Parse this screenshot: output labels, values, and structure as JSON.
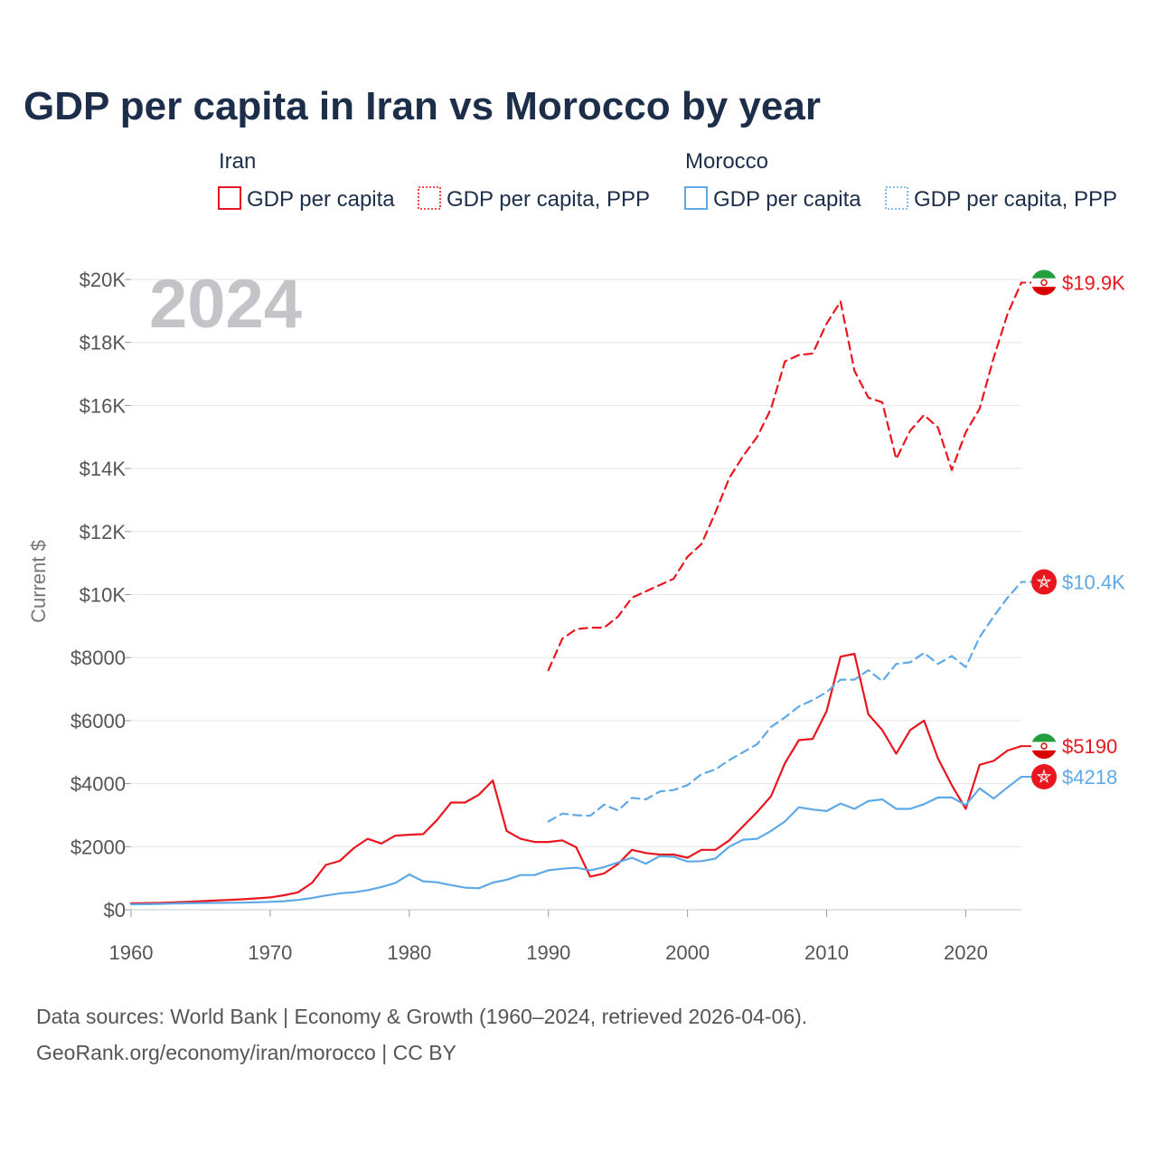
{
  "chart_data": {
    "type": "line",
    "title": "GDP per capita in Iran vs Morocco by year",
    "ylabel": "Current $",
    "xlabel": "",
    "xlim": [
      1960,
      2024
    ],
    "ylim": [
      0,
      20000
    ],
    "x_ticks": [
      1960,
      1970,
      1980,
      1990,
      2000,
      2010,
      2020
    ],
    "x_tick_labels": [
      "1960",
      "1970",
      "1980",
      "1990",
      "2000",
      "2010",
      "2020"
    ],
    "y_ticks": [
      0,
      2000,
      4000,
      6000,
      8000,
      10000,
      12000,
      14000,
      16000,
      18000,
      20000
    ],
    "y_tick_labels": [
      "$0",
      "$2000",
      "$4000",
      "$6000",
      "$8000",
      "$10K",
      "$12K",
      "$14K",
      "$16K",
      "$18K",
      "$20K"
    ],
    "grid": true,
    "year_watermark": "2024",
    "legend": {
      "groups": [
        {
          "title": "Iran",
          "color": "#e8161f",
          "items": [
            "GDP per capita",
            "GDP per capita, PPP"
          ]
        },
        {
          "title": "Morocco",
          "color": "#5ea9e6",
          "items": [
            "GDP per capita",
            "GDP per capita, PPP"
          ]
        }
      ]
    },
    "series": [
      {
        "name": "Iran GDP per capita",
        "country": "Iran",
        "color": "#e8161f",
        "dash": false,
        "end_label": "$5190",
        "flag": "iran",
        "x": [
          1960,
          1961,
          1962,
          1963,
          1964,
          1965,
          1966,
          1967,
          1968,
          1969,
          1970,
          1971,
          1972,
          1973,
          1974,
          1975,
          1976,
          1977,
          1978,
          1979,
          1980,
          1981,
          1982,
          1983,
          1984,
          1985,
          1986,
          1987,
          1988,
          1989,
          1990,
          1991,
          1992,
          1993,
          1994,
          1995,
          1996,
          1997,
          1998,
          1999,
          2000,
          2001,
          2002,
          2003,
          2004,
          2005,
          2006,
          2007,
          2008,
          2009,
          2010,
          2011,
          2012,
          2013,
          2014,
          2015,
          2016,
          2017,
          2018,
          2019,
          2020,
          2021,
          2022,
          2023,
          2024
        ],
        "values": [
          200,
          210,
          215,
          230,
          250,
          270,
          290,
          310,
          330,
          360,
          390,
          460,
          550,
          850,
          1420,
          1550,
          1950,
          2250,
          2100,
          2350,
          2380,
          2400,
          2850,
          3400,
          3400,
          3650,
          4100,
          2500,
          2250,
          2150,
          2150,
          2200,
          1980,
          1050,
          1150,
          1450,
          1900,
          1800,
          1750,
          1750,
          1650,
          1900,
          1900,
          2200,
          2650,
          3100,
          3600,
          4650,
          5380,
          5420,
          6300,
          8030,
          8120,
          6200,
          5700,
          4950,
          5700,
          6000,
          4800,
          3950,
          3200,
          4600,
          4720,
          5050,
          5190
        ]
      },
      {
        "name": "Iran GDP per capita, PPP",
        "country": "Iran",
        "color": "#e8161f",
        "dash": true,
        "end_label": "$19.9K",
        "flag": "iran",
        "x": [
          1990,
          1991,
          1992,
          1993,
          1994,
          1995,
          1996,
          1997,
          1998,
          1999,
          2000,
          2001,
          2002,
          2003,
          2004,
          2005,
          2006,
          2007,
          2008,
          2009,
          2010,
          2011,
          2012,
          2013,
          2014,
          2015,
          2016,
          2017,
          2018,
          2019,
          2020,
          2021,
          2022,
          2023,
          2024
        ],
        "values": [
          7600,
          8600,
          8900,
          8950,
          8950,
          9300,
          9900,
          10100,
          10300,
          10500,
          11200,
          11600,
          12600,
          13700,
          14400,
          15000,
          15900,
          17400,
          17600,
          17650,
          18600,
          19300,
          17100,
          16250,
          16100,
          14300,
          15200,
          15700,
          15300,
          13950,
          15150,
          15900,
          17500,
          18900,
          19900
        ]
      },
      {
        "name": "Morocco GDP per capita",
        "country": "Morocco",
        "color": "#5ea9e6",
        "dash": false,
        "end_label": "$4218",
        "flag": "morocco",
        "x": [
          1960,
          1961,
          1962,
          1963,
          1964,
          1965,
          1966,
          1967,
          1968,
          1969,
          1970,
          1971,
          1972,
          1973,
          1974,
          1975,
          1976,
          1977,
          1978,
          1979,
          1980,
          1981,
          1982,
          1983,
          1984,
          1985,
          1986,
          1987,
          1988,
          1989,
          1990,
          1991,
          1992,
          1993,
          1994,
          1995,
          1996,
          1997,
          1998,
          1999,
          2000,
          2001,
          2002,
          2003,
          2004,
          2005,
          2006,
          2007,
          2008,
          2009,
          2010,
          2011,
          2012,
          2013,
          2014,
          2015,
          2016,
          2017,
          2018,
          2019,
          2020,
          2021,
          2022,
          2023,
          2024
        ],
        "values": [
          170,
          175,
          185,
          195,
          205,
          210,
          215,
          220,
          225,
          235,
          250,
          270,
          310,
          370,
          450,
          520,
          550,
          620,
          720,
          850,
          1120,
          900,
          870,
          780,
          700,
          680,
          860,
          950,
          1100,
          1100,
          1250,
          1300,
          1330,
          1250,
          1350,
          1500,
          1650,
          1460,
          1700,
          1680,
          1530,
          1540,
          1620,
          2000,
          2220,
          2250,
          2500,
          2800,
          3250,
          3180,
          3130,
          3370,
          3200,
          3450,
          3500,
          3200,
          3200,
          3350,
          3560,
          3560,
          3320,
          3850,
          3530,
          3880,
          4218
        ]
      },
      {
        "name": "Morocco GDP per capita, PPP",
        "country": "Morocco",
        "color": "#5ea9e6",
        "dash": true,
        "end_label": "$10.4K",
        "flag": "morocco",
        "x": [
          1990,
          1991,
          1992,
          1993,
          1994,
          1995,
          1996,
          1997,
          1998,
          1999,
          2000,
          2001,
          2002,
          2003,
          2004,
          2005,
          2006,
          2007,
          2008,
          2009,
          2010,
          2011,
          2012,
          2013,
          2014,
          2015,
          2016,
          2017,
          2018,
          2019,
          2020,
          2021,
          2022,
          2023,
          2024
        ],
        "values": [
          2800,
          3050,
          3000,
          2980,
          3330,
          3150,
          3550,
          3500,
          3750,
          3800,
          3950,
          4300,
          4450,
          4750,
          5000,
          5250,
          5800,
          6100,
          6450,
          6650,
          6900,
          7300,
          7300,
          7600,
          7250,
          7800,
          7850,
          8150,
          7800,
          8050,
          7700,
          8650,
          9300,
          9900,
          10400
        ]
      }
    ],
    "footer_lines": [
      "Data sources: World Bank | Economy & Growth (1960–2024, retrieved 2026-04-06).",
      "GeoRank.org/economy/iran/morocco | CC BY"
    ]
  }
}
